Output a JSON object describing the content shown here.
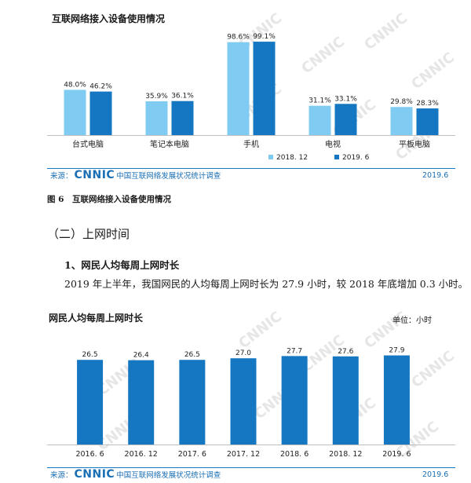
{
  "chart1": {
    "title": "互联网络接入设备使用情况",
    "chart_data": {
      "type": "bar",
      "categories": [
        "台式电脑",
        "笔记本电脑",
        "手机",
        "电视",
        "平板电脑"
      ],
      "series": [
        {
          "name": "2018. 12",
          "values": [
            48.0,
            35.9,
            98.6,
            31.1,
            29.8
          ],
          "labels": [
            "48.0%",
            "35.9%",
            "98.6%",
            "31.1%",
            "29.8%"
          ],
          "color": "#7fcbf2"
        },
        {
          "name": "2019. 6",
          "values": [
            46.2,
            36.1,
            99.1,
            33.1,
            28.3
          ],
          "labels": [
            "46.2%",
            "36.1%",
            "99.1%",
            "33.1%",
            "28.3%"
          ],
          "color": "#1577c2"
        }
      ],
      "ylim": [
        0,
        100
      ],
      "legend": "bottom-right",
      "grid": false
    }
  },
  "footer1": {
    "source_label": "来源：",
    "logo": "CNNIC",
    "org": "中国互联网络发展状况统计调查",
    "date": "2019.6"
  },
  "figure_caption": "图 6　互联网络接入设备使用情况",
  "section_heading": "（二）上网时间",
  "sub_heading": "1、网民人均每周上网时长",
  "paragraph": "2019 年上半年，我国网民的人均每周上网时长为 27.9 小时，较 2018 年底增加 0.3 小时。",
  "chart2": {
    "title": "网民人均每周上网时长",
    "unit": "单位：小时",
    "chart_data": {
      "type": "bar",
      "categories": [
        "2016. 6",
        "2016. 12",
        "2017. 6",
        "2017. 12",
        "2018. 6",
        "2018. 12",
        "2019. 6"
      ],
      "values": [
        26.5,
        26.4,
        26.5,
        27.0,
        27.7,
        27.6,
        27.9
      ],
      "labels": [
        "26.5",
        "26.4",
        "26.5",
        "27.0",
        "27.7",
        "27.6",
        "27.9"
      ],
      "color": "#1577c2",
      "ylim": [
        0,
        30
      ],
      "grid": false
    }
  },
  "footer2": {
    "source_label": "来源：",
    "logo": "CNNIC",
    "org": "中国互联网络发展状况统计调查",
    "date": "2019.6"
  },
  "watermark": "CNNIC"
}
